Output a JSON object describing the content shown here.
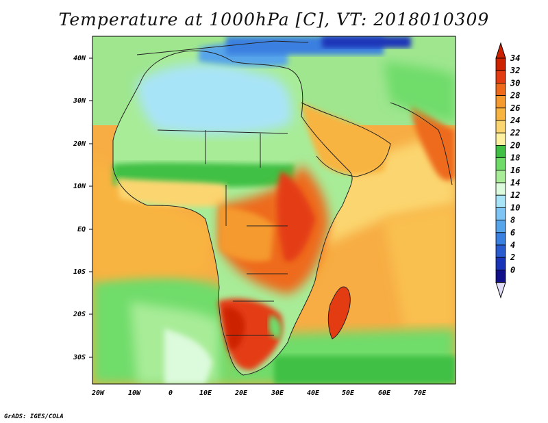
{
  "title": "Temperature at 1000hPa [C], VT: 2018010309",
  "footer": "GrADS: IGES/COLA",
  "map": {
    "lat_labels": [
      "40N",
      "30N",
      "20N",
      "10N",
      "EQ",
      "10S",
      "20S",
      "30S"
    ],
    "lon_labels": [
      "20W",
      "10W",
      "0",
      "10E",
      "20E",
      "30E",
      "40E",
      "50E",
      "60E",
      "70E"
    ]
  },
  "colorbar": {
    "levels": [
      "34",
      "32",
      "30",
      "28",
      "26",
      "24",
      "22",
      "20",
      "18",
      "16",
      "14",
      "12",
      "10",
      "8",
      "6",
      "4",
      "2",
      "0"
    ],
    "colors": [
      "#cc2200",
      "#e43c12",
      "#ee6a1a",
      "#f59a2e",
      "#f8b440",
      "#fbd570",
      "#fdf0a0",
      "#3fc044",
      "#6fdc6a",
      "#a8ec98",
      "#dcfadc",
      "#a8e4f8",
      "#7ec4f4",
      "#56a4ea",
      "#3a80e0",
      "#2a5cd0",
      "#1a34b8",
      "#101088"
    ]
  },
  "colors": {
    "ocean_warm": "#f7ad43",
    "ocean_cool": "#6fdc6a",
    "coast": "#222222"
  }
}
